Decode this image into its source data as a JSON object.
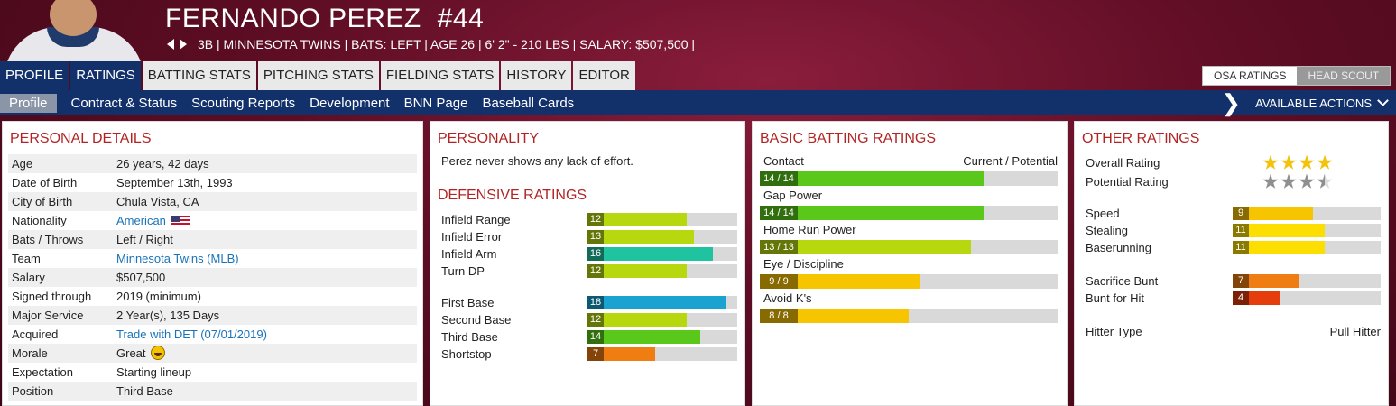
{
  "player": {
    "name": "FERNANDO PEREZ",
    "number": "#44",
    "meta": "3B | MINNESOTA TWINS  |  BATS: LEFT  |  AGE 26  |  6' 2\" - 210 LBS  |  SALARY: $507,500  |"
  },
  "tabs": [
    "PROFILE",
    "RATINGS",
    "BATTING STATS",
    "PITCHING STATS",
    "FIELDING STATS",
    "HISTORY",
    "EDITOR"
  ],
  "scout_toggle": {
    "osa": "OSA RATINGS",
    "head": "HEAD SCOUT"
  },
  "subnav": [
    "Profile",
    "Contract & Status",
    "Scouting Reports",
    "Development",
    "BNN Page",
    "Baseball Cards"
  ],
  "actions_label": "AVAILABLE ACTIONS",
  "personal": {
    "title": "PERSONAL DETAILS",
    "rows": [
      {
        "k": "Age",
        "v": "26 years, 42 days"
      },
      {
        "k": "Date of Birth",
        "v": "September 13th, 1993"
      },
      {
        "k": "City of Birth",
        "v": "Chula Vista, CA"
      },
      {
        "k": "Nationality",
        "v": "American"
      },
      {
        "k": "Bats / Throws",
        "v": "Left / Right"
      },
      {
        "k": "Team",
        "v": "Minnesota Twins (MLB)"
      },
      {
        "k": "Salary",
        "v": "$507,500"
      },
      {
        "k": "Signed through",
        "v": "2019 (minimum)"
      },
      {
        "k": "Major Service",
        "v": "2 Year(s), 135 Days"
      },
      {
        "k": "Acquired",
        "v": "Trade with DET (07/01/2019)"
      },
      {
        "k": "Morale",
        "v": "Great"
      },
      {
        "k": "Expectation",
        "v": "Starting lineup"
      },
      {
        "k": "Position",
        "v": "Third Base"
      }
    ]
  },
  "personality": {
    "title": "PERSONALITY",
    "text": "Perez never shows any lack of effort."
  },
  "defensive": {
    "title": "DEFENSIVE RATINGS",
    "group1": [
      {
        "label": "Infield Range",
        "value": "12",
        "fill": 0.66,
        "color": "#b7d80e"
      },
      {
        "label": "Infield Error",
        "value": "13",
        "fill": 0.71,
        "color": "#b7d80e"
      },
      {
        "label": "Infield Arm",
        "value": "16",
        "fill": 0.84,
        "color": "#1fc3a0"
      },
      {
        "label": "Turn DP",
        "value": "12",
        "fill": 0.66,
        "color": "#b7d80e"
      }
    ],
    "group2": [
      {
        "label": "First Base",
        "value": "18",
        "fill": 0.93,
        "color": "#1aa3d0"
      },
      {
        "label": "Second Base",
        "value": "12",
        "fill": 0.66,
        "color": "#b7d80e"
      },
      {
        "label": "Third Base",
        "value": "14",
        "fill": 0.75,
        "color": "#5ac81a"
      },
      {
        "label": "Shortstop",
        "value": "7",
        "fill": 0.45,
        "color": "#ef7d12"
      }
    ]
  },
  "batting": {
    "title": "BASIC BATTING RATINGS",
    "first_label": "Contact",
    "header_right": "Current / Potential",
    "rows": [
      {
        "label": "Contact",
        "value": "14 / 14",
        "fill": 0.75,
        "color": "#5ac81a"
      },
      {
        "label": "Gap Power",
        "value": "14 / 14",
        "fill": 0.75,
        "color": "#5ac81a"
      },
      {
        "label": "Home Run Power",
        "value": "13 / 13",
        "fill": 0.71,
        "color": "#b7d80e"
      },
      {
        "label": "Eye / Discipline",
        "value": "9 / 9",
        "fill": 0.54,
        "color": "#f7c400"
      },
      {
        "label": "Avoid K's",
        "value": "8 / 8",
        "fill": 0.5,
        "color": "#f7c400"
      }
    ]
  },
  "other": {
    "title": "OTHER RATINGS",
    "overall_label": "Overall Rating",
    "overall_stars": 4,
    "potential_label": "Potential Rating",
    "potential_stars": 3.5,
    "group1": [
      {
        "label": "Speed",
        "value": "9",
        "fill": 0.54,
        "color": "#f7c400"
      },
      {
        "label": "Stealing",
        "value": "11",
        "fill": 0.62,
        "color": "#fcdf00"
      },
      {
        "label": "Baserunning",
        "value": "11",
        "fill": 0.62,
        "color": "#fcdf00"
      }
    ],
    "group2": [
      {
        "label": "Sacrifice Bunt",
        "value": "7",
        "fill": 0.45,
        "color": "#ef7d12"
      },
      {
        "label": "Bunt for Hit",
        "value": "4",
        "fill": 0.32,
        "color": "#e53d0c"
      }
    ],
    "hitter_type_label": "Hitter Type",
    "hitter_type_value": "Pull Hitter"
  }
}
